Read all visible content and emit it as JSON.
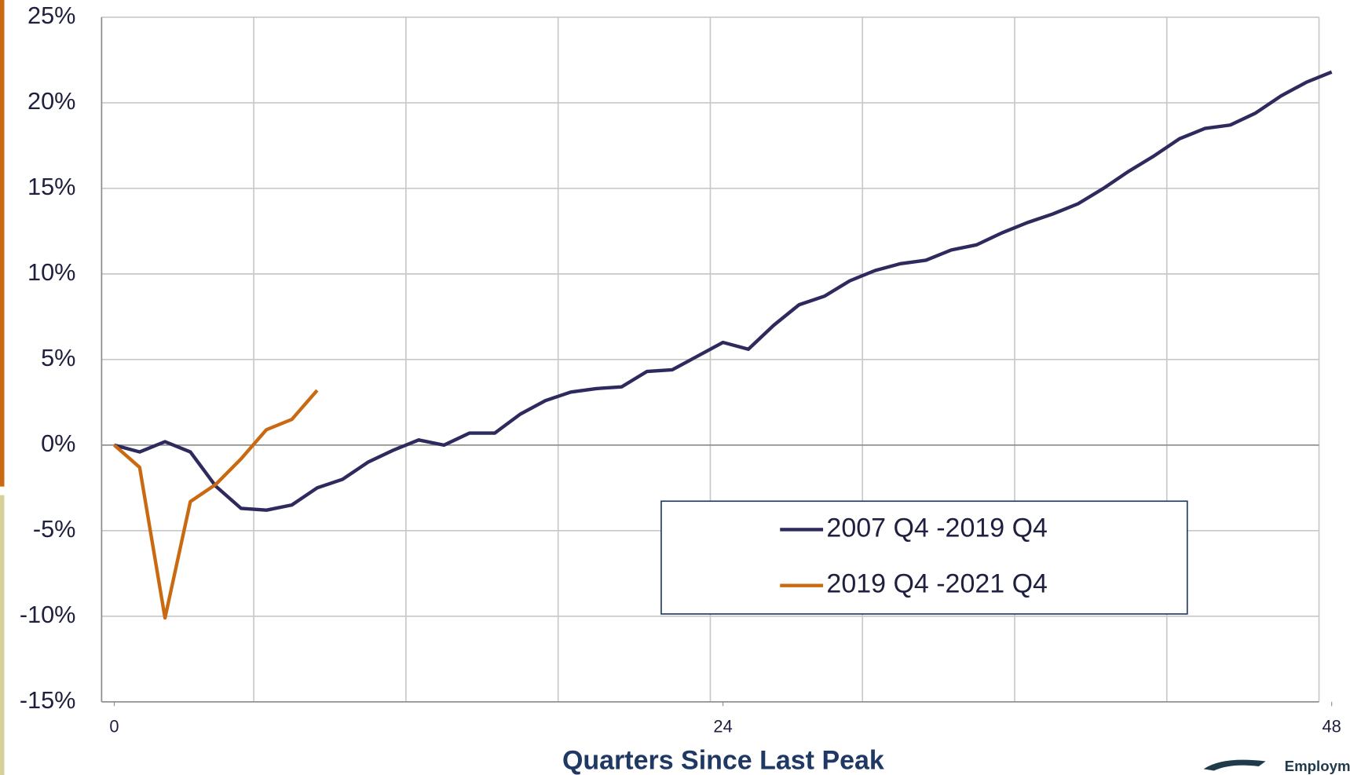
{
  "chart_data": {
    "type": "line",
    "x_label": "Quarters Since Last Peak",
    "x": [
      0,
      1,
      2,
      3,
      4,
      5,
      6,
      7,
      8,
      9,
      10,
      11,
      12,
      13,
      14,
      15,
      16,
      17,
      18,
      19,
      20,
      21,
      22,
      23,
      24,
      25,
      26,
      27,
      28,
      29,
      30,
      31,
      32,
      33,
      34,
      35,
      36,
      37,
      38,
      39,
      40,
      41,
      42,
      43,
      44,
      45,
      46,
      47,
      48
    ],
    "xlim": [
      -0.5,
      47.5
    ],
    "xticks": [
      0,
      24,
      48
    ],
    "ylim": [
      -15,
      25
    ],
    "yticks": [
      {
        "value": -15,
        "label": "-15%"
      },
      {
        "value": -10,
        "label": "-10%"
      },
      {
        "value": -5,
        "label": "-5%"
      },
      {
        "value": 0,
        "label": "0%"
      },
      {
        "value": 5,
        "label": "5%"
      },
      {
        "value": 10,
        "label": "10%"
      },
      {
        "value": 15,
        "label": "15%"
      },
      {
        "value": 20,
        "label": "20%"
      },
      {
        "value": 25,
        "label": "25%"
      }
    ],
    "grid": true,
    "series": [
      {
        "name": "2007 Q4 -2019 Q4",
        "color": "#2e2a5e",
        "values": [
          0,
          -0.4,
          0.2,
          -0.4,
          -2.4,
          -3.7,
          -3.8,
          -3.5,
          -2.5,
          -2.0,
          -1.0,
          -0.3,
          0.3,
          0.0,
          0.7,
          0.7,
          1.8,
          2.6,
          3.1,
          3.3,
          3.4,
          4.3,
          4.4,
          5.2,
          6.0,
          5.6,
          7.0,
          8.2,
          8.7,
          9.6,
          10.2,
          10.6,
          10.8,
          11.4,
          11.7,
          12.4,
          13.0,
          13.5,
          14.1,
          15.0,
          16.0,
          16.9,
          17.9,
          18.5,
          18.7,
          19.4,
          20.4,
          21.2,
          21.8
        ]
      },
      {
        "name": "2019 Q4 -2021 Q4",
        "color": "#c96a12",
        "values": [
          0,
          -1.3,
          -10.1,
          -3.3,
          -2.3,
          -0.8,
          0.9,
          1.5,
          3.2,
          null,
          null,
          null,
          null,
          null,
          null,
          null,
          null,
          null,
          null,
          null,
          null,
          null,
          null,
          null,
          null,
          null,
          null,
          null,
          null,
          null,
          null,
          null,
          null,
          null,
          null,
          null,
          null,
          null,
          null,
          null,
          null,
          null,
          null,
          null,
          null,
          null,
          null,
          null,
          null
        ]
      }
    ],
    "legend": "lower right",
    "logo_text": "Employm"
  }
}
